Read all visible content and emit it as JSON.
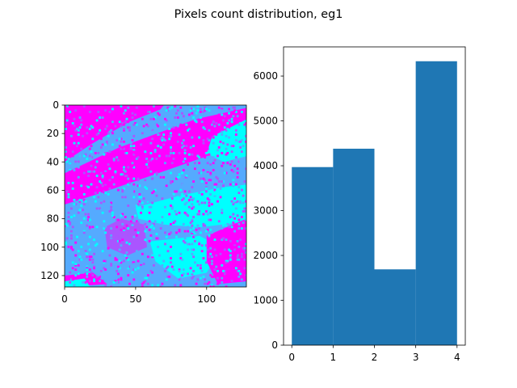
{
  "figure": {
    "suptitle": "Pixels count distribution, eg1"
  },
  "colors": {
    "magenta": "#ff00ff",
    "cyan": "#00ffff",
    "light_blue": "#55aaff",
    "violet": "#aa55ff",
    "bar": "#1f77b4"
  },
  "chart_data": [
    {
      "type": "heatmap",
      "title": "",
      "xlabel": "",
      "ylabel": "",
      "xlim": [
        0,
        128
      ],
      "ylim": [
        128,
        0
      ],
      "xticks": [
        0,
        50,
        100
      ],
      "yticks": [
        0,
        20,
        40,
        60,
        80,
        100,
        120
      ],
      "colormap": "cool",
      "value_levels": [
        0,
        1,
        2,
        3
      ],
      "grid": false,
      "legend": "none"
    },
    {
      "type": "bar",
      "title": "",
      "xlabel": "",
      "ylabel": "",
      "bin_edges": [
        0,
        1,
        2,
        3,
        4
      ],
      "values": [
        3970,
        4380,
        1690,
        6330
      ],
      "xlim": [
        -0.2,
        4.2
      ],
      "ylim": [
        0,
        6650
      ],
      "xticks": [
        0,
        1,
        2,
        3,
        4
      ],
      "yticks": [
        0,
        1000,
        2000,
        3000,
        4000,
        5000,
        6000
      ],
      "grid": false,
      "legend": "none"
    }
  ]
}
